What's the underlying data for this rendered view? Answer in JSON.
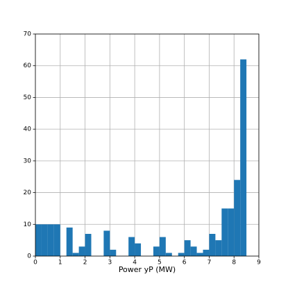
{
  "chart_data": {
    "type": "histogram",
    "xlabel": "Power yP (MW)",
    "bins": [
      0,
      0.25,
      0.5,
      0.75,
      1,
      1.25,
      1.5,
      1.75,
      2,
      2.25,
      2.5,
      2.75,
      3,
      3.25,
      3.5,
      3.75,
      4,
      4.25,
      4.5,
      4.75,
      5,
      5.25,
      5.5,
      5.75,
      6,
      6.25,
      6.5,
      6.75,
      7,
      7.25,
      7.5,
      7.75,
      8,
      8.25,
      8.5
    ],
    "values": [
      10,
      10,
      10,
      10,
      0,
      9,
      1,
      3,
      7,
      0,
      0,
      8,
      2,
      0,
      0,
      6,
      4,
      0,
      0,
      3,
      6,
      1,
      0,
      1,
      5,
      3,
      1,
      2,
      7,
      5,
      15,
      15,
      24,
      62
    ],
    "color": "#1f77b4",
    "xlim": [
      0,
      9
    ],
    "xticks": [
      0,
      1,
      2,
      3,
      4,
      5,
      6,
      7,
      8,
      9
    ],
    "ylim": [
      0,
      70
    ],
    "yticks": [
      0,
      10,
      20,
      30,
      40,
      50,
      60,
      70
    ],
    "grid": true
  }
}
